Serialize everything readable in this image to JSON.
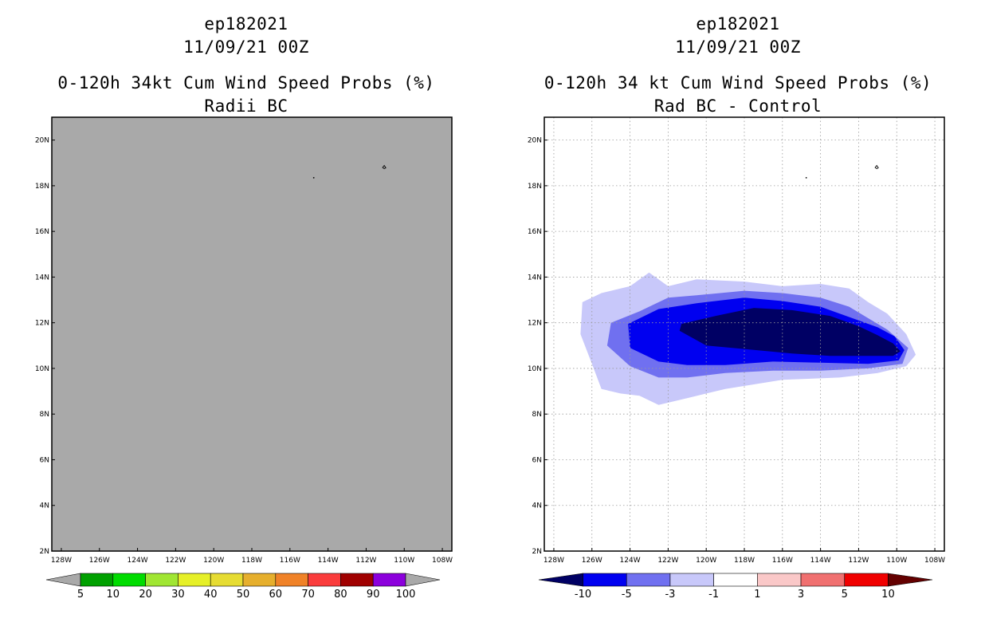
{
  "chart_data": [
    {
      "type": "heatmap",
      "title_lines": [
        "ep182021",
        "11/09/21 00Z",
        "0-120h 34kt Cum Wind Speed Probs (%)",
        "Radii BC"
      ],
      "x_ticks": [
        "128W",
        "126W",
        "124W",
        "122W",
        "120W",
        "118W",
        "116W",
        "114W",
        "112W",
        "110W",
        "108W"
      ],
      "y_ticks": [
        "2N",
        "4N",
        "6N",
        "8N",
        "10N",
        "12N",
        "14N",
        "16N",
        "18N",
        "20N"
      ],
      "xlim": [
        -128.5,
        -107.5
      ],
      "ylim": [
        2,
        21
      ],
      "grid": false,
      "field_description": "uniform below 5%",
      "colorbar": {
        "labels": [
          "5",
          "10",
          "20",
          "30",
          "40",
          "50",
          "60",
          "70",
          "80",
          "90",
          "100"
        ],
        "colors": [
          "#00a000",
          "#00dc00",
          "#a0e632",
          "#e6f028",
          "#e6dc32",
          "#e6af2d",
          "#f08228",
          "#fa3c3c",
          "#a00000",
          "#8c00dc"
        ],
        "under_color": "#a9a9a9",
        "over_color": "#a9a9a9"
      }
    },
    {
      "type": "heatmap",
      "title_lines": [
        "ep182021",
        "11/09/21 00Z",
        "0-120h 34 kt Cum Wind Speed Probs (%)",
        "Rad BC - Control"
      ],
      "x_ticks": [
        "128W",
        "126W",
        "124W",
        "122W",
        "120W",
        "118W",
        "116W",
        "114W",
        "112W",
        "110W",
        "108W"
      ],
      "y_ticks": [
        "2N",
        "4N",
        "6N",
        "8N",
        "10N",
        "12N",
        "14N",
        "16N",
        "18N",
        "20N"
      ],
      "xlim": [
        -128.5,
        -107.5
      ],
      "ylim": [
        2,
        21
      ],
      "grid": true,
      "contours": [
        {
          "level": "-1 to -3",
          "color": "#c8c8fa",
          "lonlat": [
            [
              -126.5,
              12.9
            ],
            [
              -125.5,
              13.3
            ],
            [
              -124,
              13.6
            ],
            [
              -123,
              14.2
            ],
            [
              -122,
              13.6
            ],
            [
              -120.5,
              13.9
            ],
            [
              -118,
              13.8
            ],
            [
              -116,
              13.6
            ],
            [
              -114,
              13.7
            ],
            [
              -112.5,
              13.5
            ],
            [
              -111.5,
              12.9
            ],
            [
              -110.5,
              12.4
            ],
            [
              -109.5,
              11.5
            ],
            [
              -109,
              10.6
            ],
            [
              -109.5,
              10.1
            ],
            [
              -111,
              9.8
            ],
            [
              -113,
              9.6
            ],
            [
              -116,
              9.5
            ],
            [
              -119,
              9.1
            ],
            [
              -121,
              8.7
            ],
            [
              -122.5,
              8.4
            ],
            [
              -123.5,
              8.8
            ],
            [
              -124.5,
              8.9
            ],
            [
              -125.5,
              9.1
            ],
            [
              -126,
              10.2
            ],
            [
              -126.6,
              11.5
            ]
          ]
        },
        {
          "level": "-3 to -5",
          "color": "#7070f0",
          "lonlat": [
            [
              -125,
              12.0
            ],
            [
              -123.5,
              12.5
            ],
            [
              -122,
              13.1
            ],
            [
              -120.5,
              13.2
            ],
            [
              -118,
              13.4
            ],
            [
              -116,
              13.3
            ],
            [
              -114,
              13.1
            ],
            [
              -112.5,
              12.7
            ],
            [
              -111.5,
              12.2
            ],
            [
              -110.5,
              11.7
            ],
            [
              -109.4,
              10.9
            ],
            [
              -109.7,
              10.2
            ],
            [
              -111.5,
              10.0
            ],
            [
              -114,
              9.9
            ],
            [
              -116.5,
              9.9
            ],
            [
              -119,
              9.8
            ],
            [
              -121,
              9.6
            ],
            [
              -122.5,
              9.6
            ],
            [
              -124,
              10.1
            ],
            [
              -125.2,
              11.0
            ]
          ]
        },
        {
          "level": "-5 to -10",
          "color": "#0000f0",
          "lonlat": [
            [
              -124.1,
              11.95
            ],
            [
              -122.5,
              12.6
            ],
            [
              -120.5,
              12.85
            ],
            [
              -118,
              13.1
            ],
            [
              -116,
              12.95
            ],
            [
              -114,
              12.7
            ],
            [
              -112.5,
              12.25
            ],
            [
              -111,
              11.8
            ],
            [
              -110.1,
              11.4
            ],
            [
              -109.6,
              10.8
            ],
            [
              -109.9,
              10.35
            ],
            [
              -111.5,
              10.2
            ],
            [
              -114,
              10.25
            ],
            [
              -116.5,
              10.3
            ],
            [
              -119,
              10.15
            ],
            [
              -121,
              10.15
            ],
            [
              -122.5,
              10.3
            ],
            [
              -124,
              10.9
            ]
          ]
        },
        {
          "level": "< -10",
          "color": "#000064",
          "lonlat": [
            [
              -121.3,
              11.95
            ],
            [
              -119.5,
              12.3
            ],
            [
              -117.5,
              12.65
            ],
            [
              -115.5,
              12.55
            ],
            [
              -113.5,
              12.3
            ],
            [
              -112,
              11.85
            ],
            [
              -111,
              11.45
            ],
            [
              -110.2,
              11.1
            ],
            [
              -109.8,
              10.75
            ],
            [
              -110.2,
              10.55
            ],
            [
              -111.5,
              10.55
            ],
            [
              -113.5,
              10.55
            ],
            [
              -115.5,
              10.65
            ],
            [
              -118,
              10.85
            ],
            [
              -120,
              11.0
            ],
            [
              -121.4,
              11.65
            ]
          ]
        }
      ],
      "colorbar": {
        "labels": [
          "-10",
          "-5",
          "-3",
          "-1",
          "1",
          "3",
          "5",
          "10"
        ],
        "colors": [
          "#0000f0",
          "#7070f0",
          "#c8c8fa",
          "#ffffff",
          "#fac8c8",
          "#f07070",
          "#f00000"
        ],
        "under_color": "#000064",
        "over_color": "#640000"
      }
    }
  ]
}
